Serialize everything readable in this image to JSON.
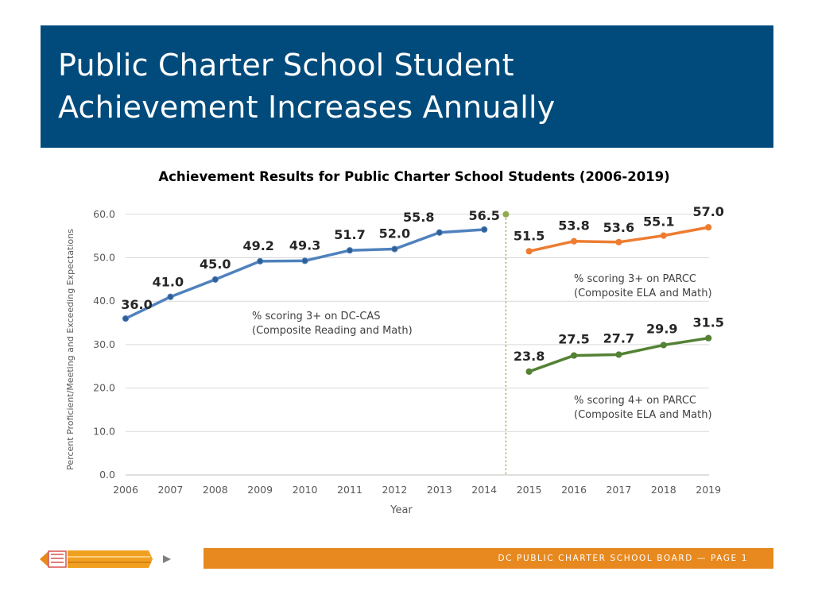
{
  "header": {
    "title": "Public Charter School Student\nAchievement Increases Annually"
  },
  "footer": {
    "text": "DC PUBLIC CHARTER SCHOOL BOARD — PAGE 1"
  },
  "colors": {
    "banner": "#004b7c",
    "footer": "#e8891f",
    "blue_series": "#4f81bd",
    "orange_series": "#ed7d31",
    "green_series": "#548235",
    "divider": "#8faa4f"
  },
  "chart_data": {
    "type": "line",
    "title": "Achievement Results for Public Charter School Students (2006-2019)",
    "xlabel": "Year",
    "ylabel": "Percent Proficient/Meeting and Exceeding Expectations",
    "ylim": [
      0,
      60
    ],
    "yticks": [
      "0.0",
      "10.0",
      "20.0",
      "30.0",
      "40.0",
      "50.0",
      "60.0"
    ],
    "categories": [
      "2006",
      "2007",
      "2008",
      "2009",
      "2010",
      "2011",
      "2012",
      "2013",
      "2014",
      "2015",
      "2016",
      "2017",
      "2018",
      "2019"
    ],
    "grid": true,
    "series": [
      {
        "name": "% scoring 3+ on DC-CAS (Composite Reading and Math)",
        "annotation": [
          "% scoring 3+ on DC-CAS",
          "(Composite Reading and Math)"
        ],
        "color": "#4f81bd",
        "x": [
          "2006",
          "2007",
          "2008",
          "2009",
          "2010",
          "2011",
          "2012",
          "2013",
          "2014"
        ],
        "values": [
          36.0,
          41.0,
          45.0,
          49.2,
          49.3,
          51.7,
          52.0,
          55.8,
          56.5
        ],
        "labels": [
          "36.0",
          "41.0",
          "45.0",
          "49.2",
          "49.3",
          "51.7",
          "52.0",
          "55.8",
          "56.5"
        ]
      },
      {
        "name": "% scoring 3+ on PARCC (Composite ELA and Math)",
        "annotation": [
          "% scoring 3+ on PARCC",
          "(Composite ELA and Math)"
        ],
        "color": "#ed7d31",
        "x": [
          "2015",
          "2016",
          "2017",
          "2018",
          "2019"
        ],
        "values": [
          51.5,
          53.8,
          53.6,
          55.1,
          57.0
        ],
        "labels": [
          "51.5",
          "53.8",
          "53.6",
          "55.1",
          "57.0"
        ]
      },
      {
        "name": "% scoring 4+ on PARCC (Composite ELA and Math)",
        "annotation": [
          "% scoring 4+ on PARCC",
          "(Composite ELA and Math)"
        ],
        "color": "#548235",
        "x": [
          "2015",
          "2016",
          "2017",
          "2018",
          "2019"
        ],
        "values": [
          23.8,
          27.5,
          27.7,
          29.9,
          31.5
        ],
        "labels": [
          "23.8",
          "27.5",
          "27.7",
          "29.9",
          "31.5"
        ]
      }
    ],
    "divider": {
      "between": [
        "2014",
        "2015"
      ],
      "style": "dotted"
    }
  }
}
